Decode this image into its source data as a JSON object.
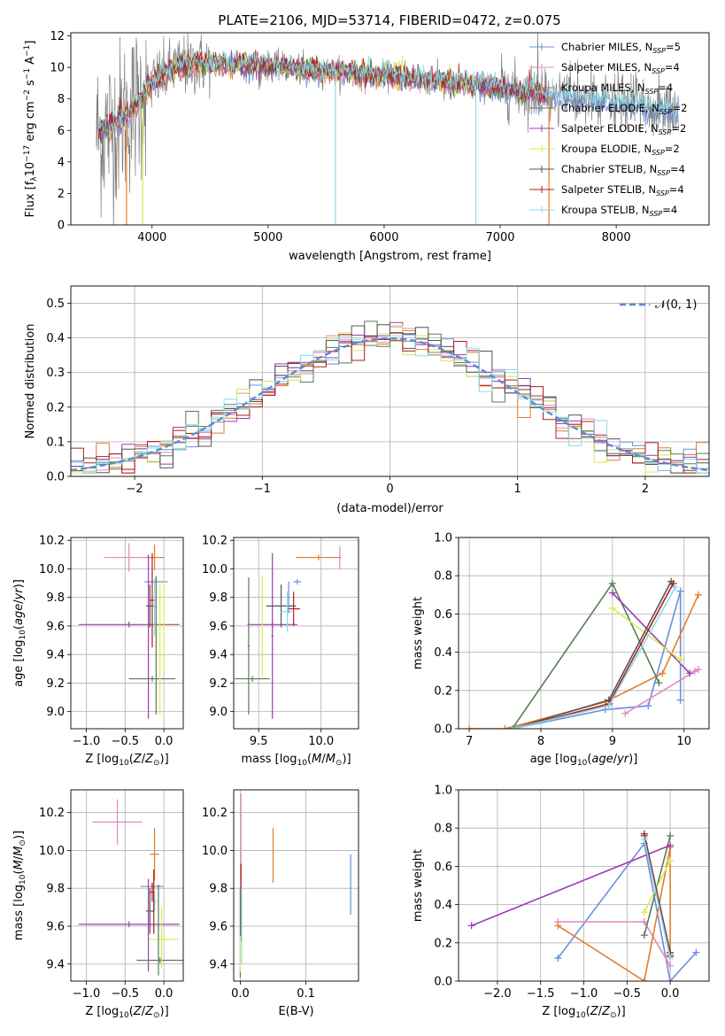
{
  "title": "PLATE=2106, MJD=53714, FIBERID=0472, z=0.075",
  "colors": {
    "Chabrier MILES": "#6a8fdc",
    "Salpeter MILES": "#e588bd",
    "Kroupa MILES": "#e27d2c",
    "Chabrier ELODIE": "#557d55",
    "Salpeter ELODIE": "#9b3cb4",
    "Kroupa ELODIE": "#d8ea55",
    "Chabrier STELIB": "#555555",
    "Salpeter STELIB": "#b21c1c",
    "Kroupa STELIB": "#86dcea",
    "data": "#808080",
    "gauss": "#5b8ad8"
  },
  "legend_spectrum": [
    {
      "name": "Chabrier MILES",
      "nssp": "5"
    },
    {
      "name": "Salpeter MILES",
      "nssp": "4"
    },
    {
      "name": "Kroupa MILES",
      "nssp": "4"
    },
    {
      "name": "Chabrier ELODIE",
      "nssp": "2"
    },
    {
      "name": "Salpeter ELODIE",
      "nssp": "2"
    },
    {
      "name": "Kroupa ELODIE",
      "nssp": "2"
    },
    {
      "name": "Chabrier STELIB",
      "nssp": "4"
    },
    {
      "name": "Salpeter STELIB",
      "nssp": "4"
    },
    {
      "name": "Kroupa STELIB",
      "nssp": "4"
    }
  ],
  "legend_gauss": "𝒩(0, 1)",
  "chart_data": [
    {
      "id": "spectrum",
      "type": "line",
      "xlabel": "wavelength [Angstrom, rest frame]",
      "ylabel": "Flux [f_λ 10^-17 erg cm^-2 s^-1 A^-1]",
      "xlim": [
        3300,
        8800
      ],
      "ylim": [
        0,
        12.2
      ],
      "xticks": [
        4000,
        5000,
        6000,
        7000,
        8000
      ],
      "yticks": [
        0,
        2,
        4,
        6,
        8,
        10,
        12
      ],
      "grid": false,
      "legend": "top-right",
      "data_range": [
        3520,
        8540
      ],
      "model_shape_x": [
        3550,
        3700,
        3850,
        4000,
        4200,
        4500,
        5000,
        5500,
        6000,
        6500,
        7000,
        7500,
        8000,
        8500
      ],
      "model_shape_y": [
        5.8,
        6.5,
        7.5,
        9.0,
        10.0,
        10.3,
        10.1,
        9.8,
        9.5,
        9.1,
        8.7,
        8.1,
        7.8,
        7.2
      ]
    },
    {
      "id": "residuals",
      "type": "line",
      "xlabel": "(data-model)/error",
      "ylabel": "Normed distribution",
      "xlim": [
        -2.5,
        2.5
      ],
      "ylim": [
        0,
        0.55
      ],
      "xticks": [
        -2,
        -1,
        0,
        1,
        2
      ],
      "yticks": [
        0.0,
        0.1,
        0.2,
        0.3,
        0.4,
        0.5
      ],
      "grid": true,
      "legend": "top-right",
      "gauss_mu": 0,
      "gauss_sigma": 1
    },
    {
      "id": "age_vs_Z",
      "type": "scatter",
      "xlabel": "Z [log10(Z/Z☉)]",
      "ylabel": "age [log10(age/yr)]",
      "xlim": [
        -1.2,
        0.25
      ],
      "ylim": [
        8.88,
        10.22
      ],
      "xticks": [
        -1.0,
        -0.5,
        0.0
      ],
      "yticks": [
        9.0,
        9.2,
        9.4,
        9.6,
        9.8,
        10.0,
        10.2
      ],
      "grid": true,
      "points": [
        {
          "m": "Chabrier MILES",
          "x": -0.1,
          "xerr": 0.15,
          "y": 9.91,
          "yerr": 0.0
        },
        {
          "m": "Salpeter MILES",
          "x": -0.45,
          "xerr": 0.32,
          "y": 10.08,
          "yerr": 0.1
        },
        {
          "m": "Kroupa MILES",
          "x": -0.12,
          "xerr": 0.12,
          "y": 10.08,
          "yerr": 0.09
        },
        {
          "m": "Chabrier ELODIE",
          "x": -0.15,
          "xerr": 0.3,
          "y": 9.23,
          "yerr": 0.0
        },
        {
          "m": "Salpeter ELODIE",
          "x": -0.45,
          "xerr": 0.65,
          "y": 9.61,
          "yerr": 0.0
        },
        {
          "m": "Kroupa ELODIE",
          "x": 0.0,
          "xerr": 0.2,
          "y": 9.6,
          "yerr": 0.33
        },
        {
          "m": "Chabrier STELIB",
          "x": -0.18,
          "xerr": 0.05,
          "y": 9.74,
          "yerr": 0.15
        },
        {
          "m": "Salpeter STELIB",
          "x": -0.15,
          "xerr": 0.03,
          "y": 9.78,
          "yerr": 0.33
        },
        {
          "m": "Kroupa STELIB",
          "x": -0.12,
          "xerr": 0.03,
          "y": 9.73,
          "yerr": 0.2
        }
      ],
      "extra_vlines": [
        {
          "m": "Salpeter ELODIE",
          "x": -0.2,
          "y0": 8.95,
          "y1": 10.1
        },
        {
          "m": "Chabrier ELODIE",
          "x": -0.1,
          "y0": 8.98,
          "y1": 9.95
        },
        {
          "m": "Kroupa ELODIE",
          "x": -0.05,
          "y0": 8.98,
          "y1": 9.9
        }
      ]
    },
    {
      "id": "age_vs_mass",
      "type": "scatter",
      "xlabel": "mass [log10(M/M☉)]",
      "ylabel": "",
      "xlim": [
        9.3,
        10.3
      ],
      "ylim": [
        8.88,
        10.22
      ],
      "xticks": [
        9.5,
        10.0
      ],
      "yticks": [
        9.0,
        9.2,
        9.4,
        9.6,
        9.8,
        10.0,
        10.2
      ],
      "grid": true,
      "points": [
        {
          "m": "Chabrier MILES",
          "x": 9.81,
          "xerr": 0.03,
          "y": 9.91,
          "yerr": 0.0
        },
        {
          "m": "Salpeter MILES",
          "x": 10.15,
          "xerr": 0.0,
          "y": 10.08,
          "yerr": 0.08
        },
        {
          "m": "Kroupa MILES",
          "x": 9.98,
          "xerr": 0.18,
          "y": 10.08,
          "yerr": 0.0
        },
        {
          "m": "Chabrier ELODIE",
          "x": 9.42,
          "xerr": 0.0,
          "y": 9.46,
          "yerr": 0.48
        },
        {
          "m": "Chabrier ELODIE",
          "x": 9.45,
          "xerr": 0.14,
          "y": 9.23,
          "yerr": 0.0
        },
        {
          "m": "Salpeter ELODIE",
          "x": 9.61,
          "xerr": 0.0,
          "y": 9.53,
          "yerr": 0.58
        },
        {
          "m": "Salpeter ELODIE",
          "x": 9.61,
          "xerr": 0.2,
          "y": 9.61,
          "yerr": 0.0
        },
        {
          "m": "Kroupa ELODIE",
          "x": 9.53,
          "xerr": 0.0,
          "y": 9.6,
          "yerr": 0.35
        },
        {
          "m": "Chabrier STELIB",
          "x": 9.68,
          "xerr": 0.12,
          "y": 9.74,
          "yerr": 0.15
        },
        {
          "m": "Salpeter STELIB",
          "x": 9.78,
          "xerr": 0.05,
          "y": 9.72,
          "yerr": 0.12
        },
        {
          "m": "Kroupa STELIB",
          "x": 9.73,
          "xerr": 0.05,
          "y": 9.7,
          "yerr": 0.14
        },
        {
          "m": "Chabrier MILES",
          "x": 9.74,
          "xerr": 0.0,
          "y": 9.8,
          "yerr": 0.11
        }
      ]
    },
    {
      "id": "weight_vs_age",
      "type": "line",
      "xlabel": "age [log10(age/yr)]",
      "ylabel": "mass weight",
      "xlim": [
        6.85,
        10.35
      ],
      "ylim": [
        0,
        1.0
      ],
      "xticks": [
        7,
        8,
        9,
        10
      ],
      "yticks": [
        0.0,
        0.2,
        0.4,
        0.6,
        0.8,
        1.0
      ],
      "grid": true,
      "series": [
        {
          "m": "Chabrier MILES",
          "x": [
            7.6,
            8.9,
            9.5,
            9.95,
            9.95
          ],
          "y": [
            0.0,
            0.1,
            0.12,
            0.72,
            0.15
          ]
        },
        {
          "m": "Salpeter MILES",
          "x": [
            9.18,
            10.15,
            10.2
          ],
          "y": [
            0.08,
            0.3,
            0.31
          ]
        },
        {
          "m": "Kroupa MILES",
          "x": [
            7.0,
            7.5,
            8.9,
            9.7,
            10.2
          ],
          "y": [
            0.0,
            0.0,
            0.14,
            0.29,
            0.7
          ]
        },
        {
          "m": "Chabrier ELODIE",
          "x": [
            7.6,
            9.0,
            9.65
          ],
          "y": [
            0.0,
            0.76,
            0.24
          ]
        },
        {
          "m": "Salpeter ELODIE",
          "x": [
            9.0,
            10.08
          ],
          "y": [
            0.71,
            0.29
          ]
        },
        {
          "m": "Kroupa ELODIE",
          "x": [
            9.0,
            9.95
          ],
          "y": [
            0.63,
            0.36
          ]
        },
        {
          "m": "Chabrier STELIB",
          "x": [
            7.6,
            8.95,
            9.82
          ],
          "y": [
            0.0,
            0.15,
            0.77
          ]
        },
        {
          "m": "Salpeter STELIB",
          "x": [
            7.6,
            8.95,
            9.85
          ],
          "y": [
            0.0,
            0.13,
            0.76
          ]
        },
        {
          "m": "Kroupa STELIB",
          "x": [
            7.6,
            8.95,
            9.88
          ],
          "y": [
            0.0,
            0.12,
            0.74
          ]
        }
      ]
    },
    {
      "id": "mass_vs_Z",
      "type": "scatter",
      "xlabel": "Z [log10(Z/Z☉)]",
      "ylabel": "mass [log10(M/M☉)]",
      "xlim": [
        -1.2,
        0.25
      ],
      "ylim": [
        9.31,
        10.32
      ],
      "xticks": [
        -1.0,
        -0.5,
        0.0
      ],
      "yticks": [
        9.4,
        9.6,
        9.8,
        10.0,
        10.2
      ],
      "grid": true,
      "points": [
        {
          "m": "Chabrier MILES",
          "x": -0.15,
          "xerr": 0.15,
          "y": 9.81,
          "yerr": 0.0
        },
        {
          "m": "Salpeter MILES",
          "x": -0.6,
          "xerr": 0.32,
          "y": 10.15,
          "yerr": 0.12
        },
        {
          "m": "Kroupa MILES",
          "x": -0.12,
          "xerr": 0.06,
          "y": 9.98,
          "yerr": 0.14
        },
        {
          "m": "Chabrier ELODIE",
          "x": -0.05,
          "xerr": 0.3,
          "y": 9.42,
          "yerr": 0.0
        },
        {
          "m": "Salpeter ELODIE",
          "x": -0.45,
          "xerr": 0.65,
          "y": 9.61,
          "yerr": 0.0
        },
        {
          "m": "Kroupa ELODIE",
          "x": 0.0,
          "xerr": 0.2,
          "y": 9.53,
          "yerr": 0.0
        },
        {
          "m": "Chabrier STELIB",
          "x": -0.18,
          "xerr": 0.05,
          "y": 9.68,
          "yerr": 0.12
        },
        {
          "m": "Salpeter STELIB",
          "x": -0.15,
          "xerr": 0.03,
          "y": 9.78,
          "yerr": 0.05
        },
        {
          "m": "Kroupa STELIB",
          "x": -0.12,
          "xerr": 0.03,
          "y": 9.73,
          "yerr": 0.05
        }
      ],
      "extra_vlines": [
        {
          "m": "Salpeter ELODIE",
          "x": -0.2,
          "y0": 9.36,
          "y1": 9.85
        },
        {
          "m": "Chabrier ELODIE",
          "x": -0.07,
          "y0": 9.34,
          "y1": 9.82
        },
        {
          "m": "Kroupa ELODIE",
          "x": -0.03,
          "y0": 9.38,
          "y1": 9.7
        },
        {
          "m": "Salpeter STELIB",
          "x": -0.13,
          "y0": 9.56,
          "y1": 9.9
        }
      ]
    },
    {
      "id": "mass_vs_ebv",
      "type": "scatter",
      "xlabel": "E(B-V)",
      "ylabel": "",
      "xlim": [
        -0.01,
        0.18
      ],
      "ylim": [
        9.31,
        10.32
      ],
      "xticks": [
        0.0,
        0.1
      ],
      "yticks": [
        9.4,
        9.6,
        9.8,
        10.0,
        10.2
      ],
      "grid": true,
      "vbars": [
        {
          "m": "Salpeter MILES",
          "x": 0.001,
          "y0": 9.85,
          "y1": 10.3
        },
        {
          "m": "Salpeter STELIB",
          "x": 0.001,
          "y0": 9.52,
          "y1": 9.93
        },
        {
          "m": "Chabrier ELODIE",
          "x": 0.0,
          "y0": 9.33,
          "y1": 9.8
        },
        {
          "m": "Kroupa STELIB",
          "x": 0.002,
          "y0": 9.4,
          "y1": 9.8
        },
        {
          "m": "Kroupa ELODIE",
          "x": 0.0,
          "y0": 9.36,
          "y1": 9.55
        },
        {
          "m": "Kroupa MILES",
          "x": 0.05,
          "y0": 9.83,
          "y1": 10.12
        },
        {
          "m": "Chabrier MILES",
          "x": 0.168,
          "y0": 9.66,
          "y1": 9.98
        }
      ]
    },
    {
      "id": "weight_vs_Z",
      "type": "line",
      "xlabel": "Z [log10(Z/Z☉)]",
      "ylabel": "mass weight",
      "xlim": [
        -2.45,
        0.45
      ],
      "ylim": [
        0,
        1.0
      ],
      "xticks": [
        -2.0,
        -1.5,
        -1.0,
        -0.5,
        0.0
      ],
      "yticks": [
        0.0,
        0.2,
        0.4,
        0.6,
        0.8,
        1.0
      ],
      "grid": true,
      "series": [
        {
          "m": "Chabrier MILES",
          "x": [
            -1.3,
            -0.3,
            0.0,
            0.3
          ],
          "y": [
            0.12,
            0.72,
            0.0,
            0.15
          ]
        },
        {
          "m": "Salpeter MILES",
          "x": [
            -1.3,
            -0.3,
            0.0
          ],
          "y": [
            0.31,
            0.31,
            0.08
          ]
        },
        {
          "m": "Kroupa MILES",
          "x": [
            -1.3,
            -0.3,
            0.0,
            0.0
          ],
          "y": [
            0.29,
            0.0,
            0.7,
            0.14
          ]
        },
        {
          "m": "Chabrier ELODIE",
          "x": [
            -0.3,
            0.0
          ],
          "y": [
            0.24,
            0.76
          ]
        },
        {
          "m": "Salpeter ELODIE",
          "x": [
            -2.3,
            0.0
          ],
          "y": [
            0.29,
            0.71
          ]
        },
        {
          "m": "Kroupa ELODIE",
          "x": [
            -0.3,
            0.0
          ],
          "y": [
            0.36,
            0.63
          ]
        },
        {
          "m": "Chabrier STELIB",
          "x": [
            -0.3,
            0.0
          ],
          "y": [
            0.77,
            0.15
          ]
        },
        {
          "m": "Salpeter STELIB",
          "x": [
            -0.3,
            0.0
          ],
          "y": [
            0.76,
            0.13
          ]
        },
        {
          "m": "Kroupa STELIB",
          "x": [
            -0.3,
            0.0
          ],
          "y": [
            0.74,
            0.12
          ]
        }
      ]
    }
  ]
}
